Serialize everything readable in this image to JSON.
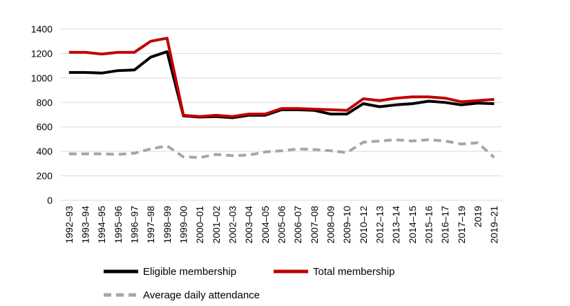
{
  "chart_data": {
    "type": "line",
    "title": "",
    "xlabel": "",
    "ylabel": "",
    "ylim": [
      0,
      1400
    ],
    "yticks": [
      0,
      200,
      400,
      600,
      800,
      1000,
      1200,
      1400
    ],
    "grid": "horizontal",
    "legend_position": "bottom",
    "categories": [
      "1992–93",
      "1993–94",
      "1994–95",
      "1995–96",
      "1996–97",
      "1997–98",
      "1998–99",
      "1999–00",
      "2000–01",
      "2001–02",
      "2002–03",
      "2003–04",
      "2004–05",
      "2005–06",
      "2006–07",
      "2007–08",
      "2008–09",
      "2009–10",
      "2010–12",
      "2012–13",
      "2013–14",
      "2014–15",
      "2015–16",
      "2016–17",
      "2017–19",
      "2019",
      "2019–21"
    ],
    "series": [
      {
        "name": "Eligible membership",
        "color": "#000000",
        "dash": "solid",
        "values": [
          1045,
          1045,
          1040,
          1060,
          1065,
          1170,
          1215,
          690,
          680,
          685,
          675,
          695,
          695,
          740,
          740,
          735,
          705,
          705,
          790,
          765,
          780,
          790,
          810,
          800,
          780,
          795,
          790
        ]
      },
      {
        "name": "Total membership",
        "color": "#c00000",
        "dash": "solid",
        "values": [
          1210,
          1210,
          1195,
          1210,
          1210,
          1300,
          1325,
          695,
          685,
          695,
          685,
          705,
          705,
          750,
          750,
          745,
          740,
          735,
          830,
          815,
          835,
          845,
          845,
          835,
          805,
          815,
          825
        ]
      },
      {
        "name": "Average daily attendance",
        "color": "#a6a6a6",
        "dash": "dashed",
        "values": [
          380,
          380,
          380,
          375,
          385,
          420,
          445,
          355,
          350,
          375,
          365,
          370,
          395,
          405,
          420,
          415,
          405,
          390,
          475,
          485,
          495,
          485,
          495,
          485,
          460,
          470,
          350
        ]
      }
    ]
  }
}
